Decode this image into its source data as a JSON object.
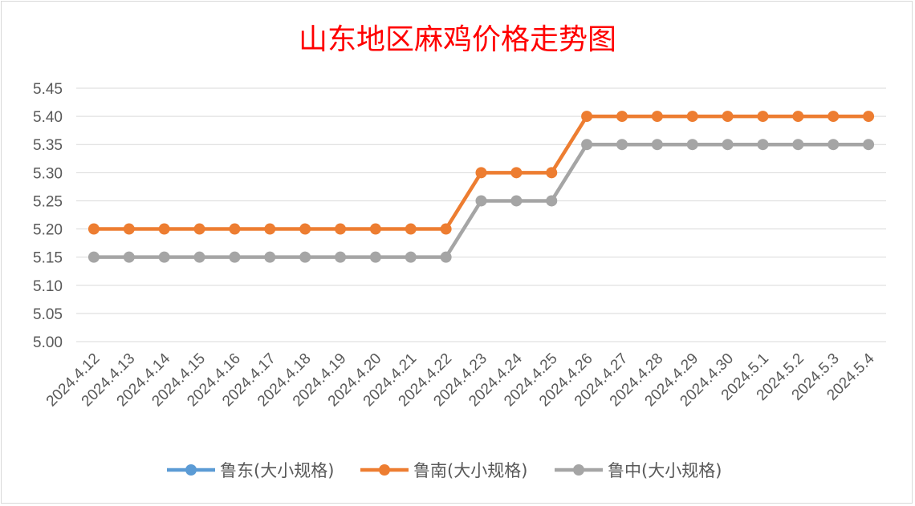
{
  "chart_data": {
    "type": "line",
    "title": "山东地区麻鸡价格走势图",
    "xlabel": "",
    "ylabel": "",
    "ylim": [
      5.0,
      5.45
    ],
    "ytick_step": 0.05,
    "y_decimals": 2,
    "grid": true,
    "legend_position": "bottom",
    "categories": [
      "2024.4.12",
      "2024.4.13",
      "2024.4.14",
      "2024.4.15",
      "2024.4.16",
      "2024.4.17",
      "2024.4.18",
      "2024.4.19",
      "2024.4.20",
      "2024.4.21",
      "2024.4.22",
      "2024.4.23",
      "2024.4.24",
      "2024.4.25",
      "2024.4.26",
      "2024.4.27",
      "2024.4.28",
      "2024.4.29",
      "2024.4.30",
      "2024.5.1",
      "2024.5.2",
      "2024.5.3",
      "2024.5.4"
    ],
    "series": [
      {
        "name": "鲁东(大小规格)",
        "color": "#5b9bd5",
        "values": [
          null,
          null,
          null,
          null,
          null,
          null,
          null,
          null,
          null,
          null,
          null,
          null,
          null,
          null,
          null,
          null,
          null,
          null,
          null,
          null,
          null,
          null,
          null
        ]
      },
      {
        "name": "鲁南(大小规格)",
        "color": "#ed7d31",
        "values": [
          5.2,
          5.2,
          5.2,
          5.2,
          5.2,
          5.2,
          5.2,
          5.2,
          5.2,
          5.2,
          5.2,
          5.3,
          5.3,
          5.3,
          5.4,
          5.4,
          5.4,
          5.4,
          5.4,
          5.4,
          5.4,
          5.4,
          5.4
        ]
      },
      {
        "name": "鲁中(大小规格)",
        "color": "#a5a5a5",
        "values": [
          5.15,
          5.15,
          5.15,
          5.15,
          5.15,
          5.15,
          5.15,
          5.15,
          5.15,
          5.15,
          5.15,
          5.25,
          5.25,
          5.25,
          5.35,
          5.35,
          5.35,
          5.35,
          5.35,
          5.35,
          5.35,
          5.35,
          5.35
        ]
      }
    ]
  }
}
